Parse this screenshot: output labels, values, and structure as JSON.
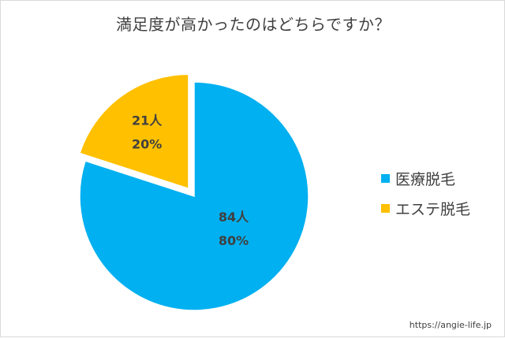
{
  "chart_data": {
    "type": "pie",
    "title": "満足度が高かったのはどちらですか？",
    "slices": [
      {
        "name": "医療脱毛",
        "count_label": "84人",
        "percent_label": "80%",
        "value": 80,
        "color": "#00b0f0"
      },
      {
        "name": "エステ脱毛",
        "count_label": "21人",
        "percent_label": "20%",
        "value": 20,
        "color": "#ffc000"
      }
    ],
    "legend_position": "right"
  },
  "footer": {
    "url": "https://angie-life.jp"
  }
}
